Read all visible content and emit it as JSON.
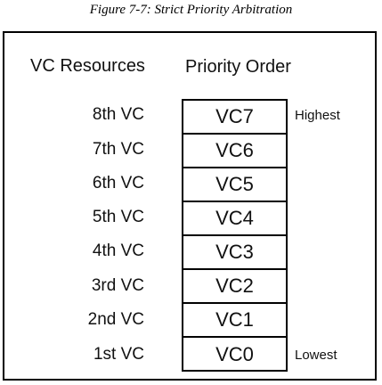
{
  "caption": "Figure 7-7: Strict Priority Arbitration",
  "headers": {
    "resources": "VC Resources",
    "priority": "Priority Order"
  },
  "rows": [
    {
      "resource": "8th VC",
      "vc": "VC7",
      "note": "Highest"
    },
    {
      "resource": "7th VC",
      "vc": "VC6",
      "note": ""
    },
    {
      "resource": "6th VC",
      "vc": "VC5",
      "note": ""
    },
    {
      "resource": "5th VC",
      "vc": "VC4",
      "note": ""
    },
    {
      "resource": "4th VC",
      "vc": "VC3",
      "note": ""
    },
    {
      "resource": "3rd VC",
      "vc": "VC2",
      "note": ""
    },
    {
      "resource": "2nd VC",
      "vc": "VC1",
      "note": ""
    },
    {
      "resource": "1st VC",
      "vc": "VC0",
      "note": "Lowest"
    }
  ]
}
